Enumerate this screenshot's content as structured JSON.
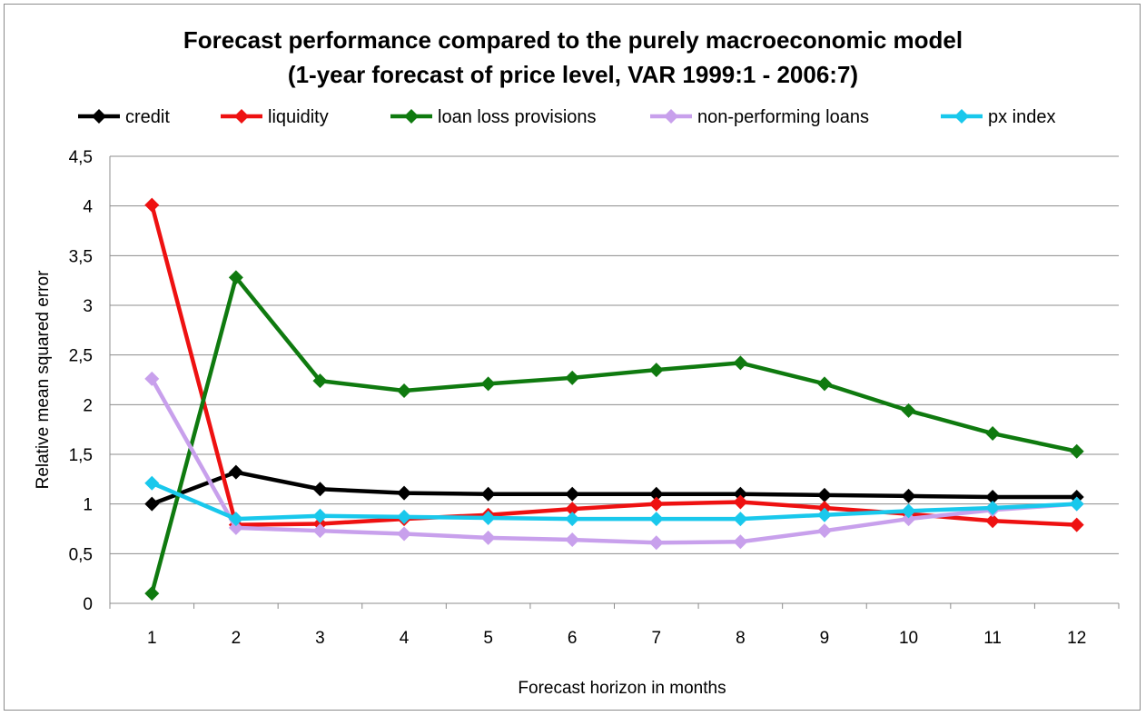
{
  "chart_data": {
    "type": "line",
    "title_line1": "Forecast performance  compared to the purely macroeconomic model",
    "title_line2": "(1-year forecast of price level, VAR 1999:1 - 2006:7)",
    "xlabel": "Forecast horizon in months",
    "ylabel": "Relative mean squared error",
    "categories": [
      "1",
      "2",
      "3",
      "4",
      "5",
      "6",
      "7",
      "8",
      "9",
      "10",
      "11",
      "12"
    ],
    "ylim": [
      0,
      4.5
    ],
    "yticks": [
      0,
      0.5,
      1,
      1.5,
      2,
      2.5,
      3,
      3.5,
      4,
      4.5
    ],
    "ytick_labels": [
      "0",
      "0,5",
      "1",
      "1,5",
      "2",
      "2,5",
      "3",
      "3,5",
      "4",
      "4,5"
    ],
    "grid": "horizontal",
    "legend_position": "top",
    "series": [
      {
        "name": "credit",
        "color": "#000000",
        "values": [
          1.0,
          1.32,
          1.15,
          1.11,
          1.1,
          1.1,
          1.1,
          1.1,
          1.09,
          1.08,
          1.07,
          1.07
        ]
      },
      {
        "name": "liquidity",
        "color": "#ee1111",
        "values": [
          4.01,
          0.79,
          0.8,
          0.85,
          0.89,
          0.95,
          1.0,
          1.02,
          0.96,
          0.9,
          0.83,
          0.79
        ]
      },
      {
        "name": "loan loss provisions",
        "color": "#0f7a0f",
        "values": [
          0.1,
          3.28,
          2.24,
          2.14,
          2.21,
          2.27,
          2.35,
          2.42,
          2.21,
          1.94,
          1.71,
          1.53
        ]
      },
      {
        "name": "non-performing loans",
        "color": "#c8a0ec",
        "values": [
          2.26,
          0.76,
          0.73,
          0.7,
          0.66,
          0.64,
          0.61,
          0.62,
          0.73,
          0.85,
          0.94,
          1.0
        ]
      },
      {
        "name": "px index",
        "color": "#19c8ec",
        "values": [
          1.21,
          0.85,
          0.88,
          0.87,
          0.86,
          0.85,
          0.85,
          0.85,
          0.89,
          0.93,
          0.96,
          1.0
        ]
      }
    ]
  }
}
